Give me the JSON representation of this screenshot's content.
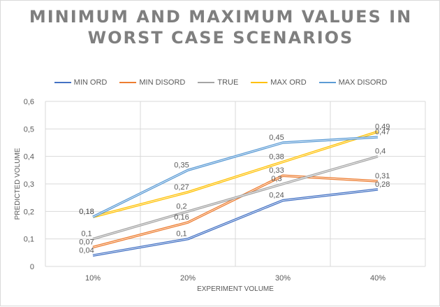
{
  "chart_data": {
    "type": "line",
    "title": "MINIMUM AND MAXIMUM VALUES IN WORST CASE SCENARIOS",
    "title_lines": [
      "MINIMUM AND MAXIMUM VALUES IN",
      "WORST CASE SCENARIOS"
    ],
    "xlabel": "EXPERIMENT VOLUME",
    "ylabel": "PREDICTED VOLUME",
    "categories": [
      "10%",
      "20%",
      "30%",
      "40%"
    ],
    "ylim": [
      0,
      0.6
    ],
    "yticks": [
      "0",
      "0,1",
      "0,2",
      "0,3",
      "0,4",
      "0,5",
      "0,6"
    ],
    "grid": true,
    "legend_position": "top",
    "series": [
      {
        "name": "MIN ORD",
        "color": "#4472c4",
        "values": [
          0.04,
          0.1,
          0.24,
          0.28
        ],
        "labels": [
          "0,04",
          "0,1",
          "0,24",
          "0,28"
        ]
      },
      {
        "name": "MIN DISORD",
        "color": "#ed7d31",
        "values": [
          0.07,
          0.16,
          0.33,
          0.31
        ],
        "labels": [
          "0,07",
          "0,16",
          "0,33",
          "0,31"
        ]
      },
      {
        "name": "TRUE",
        "color": "#a5a5a5",
        "values": [
          0.1,
          0.2,
          0.3,
          0.4
        ],
        "labels": [
          "0,1",
          "0,2",
          "0,3",
          "0,4"
        ]
      },
      {
        "name": "MAX ORD",
        "color": "#ffc000",
        "values": [
          0.18,
          0.27,
          0.38,
          0.49
        ],
        "labels": [
          "0,18",
          "0,27",
          "0,38",
          "0,49"
        ]
      },
      {
        "name": "MAX DISORD",
        "color": "#5b9bd5",
        "values": [
          0.18,
          0.35,
          0.45,
          0.47
        ],
        "labels": [
          "0,18",
          "0,35",
          "0,45",
          "0,47"
        ]
      }
    ]
  }
}
